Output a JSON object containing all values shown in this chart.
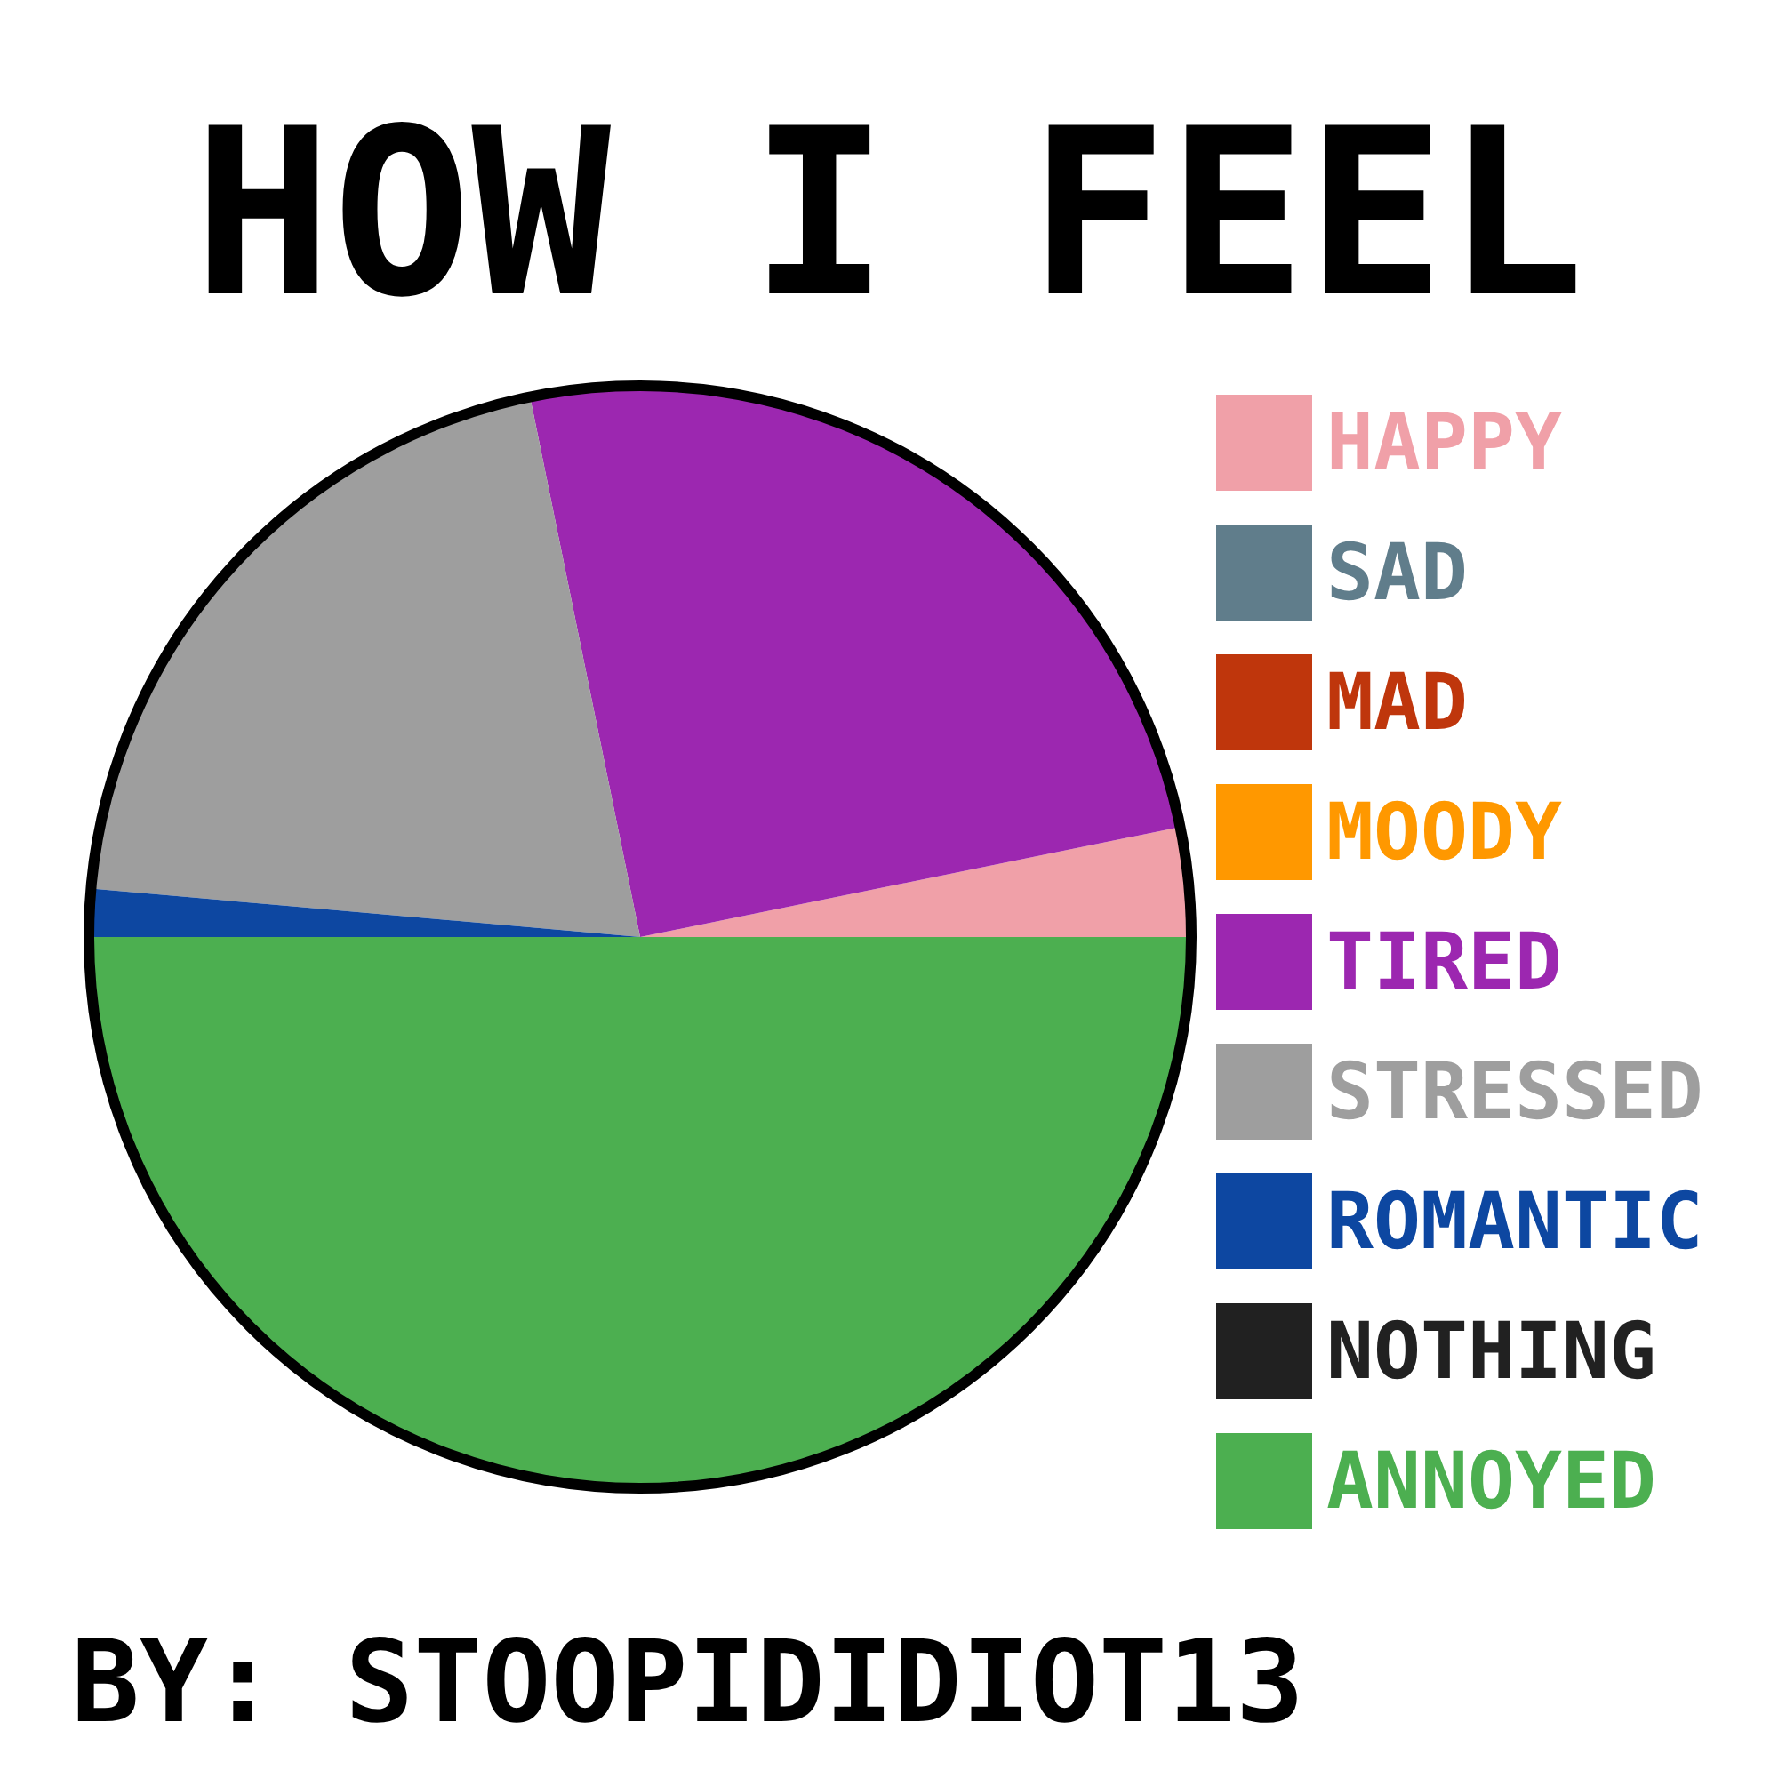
{
  "chart_data": {
    "type": "pie",
    "title": "HOW I FEEL",
    "categories": [
      "HAPPY",
      "SAD",
      "MAD",
      "MOODY",
      "TIRED",
      "STRESSED",
      "ROMANTIC",
      "NOTHING",
      "ANNOYED"
    ],
    "values": [
      3.2,
      0,
      0,
      0,
      25,
      20.4,
      1.4,
      0,
      50
    ],
    "colors": [
      "#f0a0a8",
      "#607d8b",
      "#bf360c",
      "#ff9800",
      "#9c27b0",
      "#9e9e9e",
      "#0d47a1",
      "#212121",
      "#4caf50"
    ],
    "legend": "right",
    "annotations": [
      "BY: STOOPIDIDIOT13"
    ]
  }
}
